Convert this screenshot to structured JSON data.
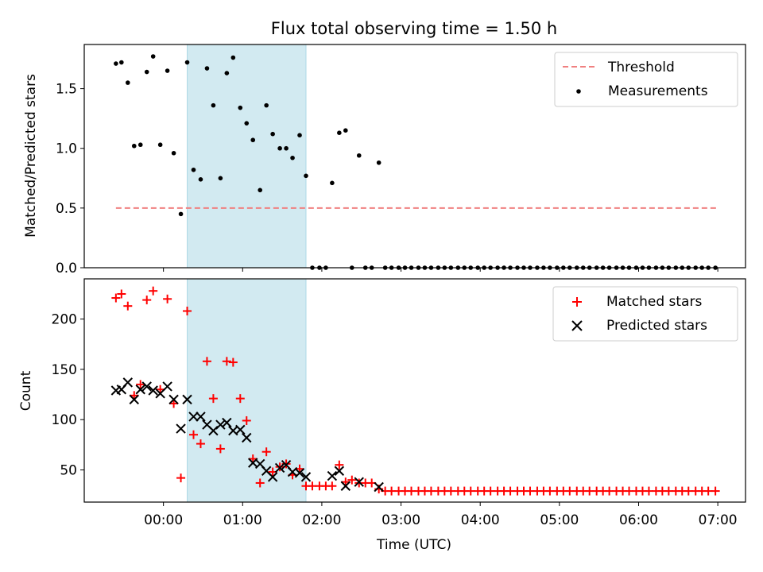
{
  "chart_data": [
    {
      "type": "scatter",
      "title": "Flux total observing time = 1.50 h",
      "ylabel": "Matched/Predicted stars",
      "xlim": [
        -1.0,
        7.35
      ],
      "ylim": [
        0,
        1.87
      ],
      "ytick_labels": [
        "0.0",
        "0.5",
        "1.0",
        "1.5"
      ],
      "ytick_values": [
        0,
        0.5,
        1.0,
        1.5
      ],
      "grid": false,
      "legend": "top-right",
      "shaded_span": {
        "x_start": 0.3,
        "x_end": 1.8,
        "color": "#add8e6"
      },
      "threshold": {
        "name": "Threshold",
        "value": 0.5,
        "x_start": -0.6,
        "x_end": 7.0,
        "color": "#f08080"
      },
      "series": [
        {
          "name": "Measurements",
          "color": "#000000",
          "marker": "dot",
          "points": [
            [
              -0.6,
              1.71
            ],
            [
              -0.53,
              1.72
            ],
            [
              -0.45,
              1.55
            ],
            [
              -0.37,
              1.02
            ],
            [
              -0.29,
              1.03
            ],
            [
              -0.21,
              1.64
            ],
            [
              -0.13,
              1.77
            ],
            [
              -0.04,
              1.03
            ],
            [
              0.05,
              1.65
            ],
            [
              0.13,
              0.96
            ],
            [
              0.22,
              0.45
            ],
            [
              0.3,
              1.72
            ],
            [
              0.38,
              0.82
            ],
            [
              0.47,
              0.74
            ],
            [
              0.55,
              1.67
            ],
            [
              0.63,
              1.36
            ],
            [
              0.72,
              0.75
            ],
            [
              0.8,
              1.63
            ],
            [
              0.88,
              1.76
            ],
            [
              0.97,
              1.34
            ],
            [
              1.05,
              1.21
            ],
            [
              1.13,
              1.07
            ],
            [
              1.22,
              0.65
            ],
            [
              1.3,
              1.36
            ],
            [
              1.38,
              1.12
            ],
            [
              1.47,
              1.0
            ],
            [
              1.55,
              1.0
            ],
            [
              1.63,
              0.92
            ],
            [
              1.72,
              1.11
            ],
            [
              1.8,
              0.77
            ],
            [
              1.88,
              0
            ],
            [
              1.97,
              0
            ],
            [
              2.05,
              0
            ],
            [
              2.13,
              0.71
            ],
            [
              2.22,
              1.13
            ],
            [
              2.3,
              1.15
            ],
            [
              2.38,
              0
            ],
            [
              2.47,
              0.94
            ],
            [
              2.55,
              0
            ],
            [
              2.63,
              0
            ],
            [
              2.72,
              0.88
            ],
            [
              2.8,
              0
            ],
            [
              2.88,
              0
            ],
            [
              2.97,
              0
            ],
            [
              3.05,
              0
            ],
            [
              3.13,
              0
            ],
            [
              3.22,
              0
            ],
            [
              3.3,
              0
            ],
            [
              3.38,
              0
            ],
            [
              3.47,
              0
            ],
            [
              3.55,
              0
            ],
            [
              3.63,
              0
            ],
            [
              3.72,
              0
            ],
            [
              3.8,
              0
            ],
            [
              3.88,
              0
            ],
            [
              3.97,
              0
            ],
            [
              4.05,
              0
            ],
            [
              4.13,
              0
            ],
            [
              4.22,
              0
            ],
            [
              4.3,
              0
            ],
            [
              4.38,
              0
            ],
            [
              4.47,
              0
            ],
            [
              4.55,
              0
            ],
            [
              4.63,
              0
            ],
            [
              4.72,
              0
            ],
            [
              4.8,
              0
            ],
            [
              4.88,
              0
            ],
            [
              4.97,
              0
            ],
            [
              5.05,
              0
            ],
            [
              5.13,
              0
            ],
            [
              5.22,
              0
            ],
            [
              5.3,
              0
            ],
            [
              5.38,
              0
            ],
            [
              5.47,
              0
            ],
            [
              5.55,
              0
            ],
            [
              5.63,
              0
            ],
            [
              5.72,
              0
            ],
            [
              5.8,
              0
            ],
            [
              5.88,
              0
            ],
            [
              5.97,
              0
            ],
            [
              6.05,
              0
            ],
            [
              6.13,
              0
            ],
            [
              6.22,
              0
            ],
            [
              6.3,
              0
            ],
            [
              6.38,
              0
            ],
            [
              6.47,
              0
            ],
            [
              6.55,
              0
            ],
            [
              6.63,
              0
            ],
            [
              6.72,
              0
            ],
            [
              6.8,
              0
            ],
            [
              6.88,
              0
            ],
            [
              6.97,
              0
            ]
          ]
        }
      ]
    },
    {
      "type": "scatter",
      "xlabel": "Time (UTC)",
      "ylabel": "Count",
      "xlim": [
        -1.0,
        7.35
      ],
      "ylim": [
        18,
        240
      ],
      "xtick_labels": [
        "00:00",
        "01:00",
        "02:00",
        "03:00",
        "04:00",
        "05:00",
        "06:00",
        "07:00"
      ],
      "xtick_values": [
        0,
        1,
        2,
        3,
        4,
        5,
        6,
        7
      ],
      "ytick_labels": [
        "50",
        "100",
        "150",
        "200"
      ],
      "ytick_values": [
        50,
        100,
        150,
        200
      ],
      "grid": false,
      "legend": "top-right",
      "shaded_span": {
        "x_start": 0.3,
        "x_end": 1.8,
        "color": "#add8e6"
      },
      "series": [
        {
          "name": "Matched stars",
          "color": "#ff0000",
          "marker": "plus",
          "points": [
            [
              -0.6,
              221
            ],
            [
              -0.53,
              225
            ],
            [
              -0.45,
              213
            ],
            [
              -0.37,
              124
            ],
            [
              -0.29,
              135
            ],
            [
              -0.21,
              219
            ],
            [
              -0.13,
              228
            ],
            [
              -0.04,
              130
            ],
            [
              0.05,
              220
            ],
            [
              0.13,
              116
            ],
            [
              0.22,
              42
            ],
            [
              0.3,
              208
            ],
            [
              0.38,
              85
            ],
            [
              0.47,
              76
            ],
            [
              0.55,
              158
            ],
            [
              0.63,
              121
            ],
            [
              0.72,
              71
            ],
            [
              0.8,
              158
            ],
            [
              0.88,
              157
            ],
            [
              0.97,
              121
            ],
            [
              1.05,
              99
            ],
            [
              1.13,
              61
            ],
            [
              1.22,
              37
            ],
            [
              1.3,
              68
            ],
            [
              1.38,
              48
            ],
            [
              1.47,
              53
            ],
            [
              1.55,
              56
            ],
            [
              1.63,
              45
            ],
            [
              1.72,
              51
            ],
            [
              1.8,
              34
            ],
            [
              1.88,
              34
            ],
            [
              1.97,
              34
            ],
            [
              2.05,
              34
            ],
            [
              2.13,
              34
            ],
            [
              2.22,
              55
            ],
            [
              2.3,
              38
            ],
            [
              2.38,
              40
            ],
            [
              2.47,
              37
            ],
            [
              2.55,
              37
            ],
            [
              2.63,
              37
            ],
            [
              2.72,
              31
            ],
            [
              2.8,
              29
            ],
            [
              2.88,
              29
            ],
            [
              2.97,
              29
            ],
            [
              3.05,
              29
            ],
            [
              3.13,
              29
            ],
            [
              3.22,
              29
            ],
            [
              3.3,
              29
            ],
            [
              3.38,
              29
            ],
            [
              3.47,
              29
            ],
            [
              3.55,
              29
            ],
            [
              3.63,
              29
            ],
            [
              3.72,
              29
            ],
            [
              3.8,
              29
            ],
            [
              3.88,
              29
            ],
            [
              3.97,
              29
            ],
            [
              4.05,
              29
            ],
            [
              4.13,
              29
            ],
            [
              4.22,
              29
            ],
            [
              4.3,
              29
            ],
            [
              4.38,
              29
            ],
            [
              4.47,
              29
            ],
            [
              4.55,
              29
            ],
            [
              4.63,
              29
            ],
            [
              4.72,
              29
            ],
            [
              4.8,
              29
            ],
            [
              4.88,
              29
            ],
            [
              4.97,
              29
            ],
            [
              5.05,
              29
            ],
            [
              5.13,
              29
            ],
            [
              5.22,
              29
            ],
            [
              5.3,
              29
            ],
            [
              5.38,
              29
            ],
            [
              5.47,
              29
            ],
            [
              5.55,
              29
            ],
            [
              5.63,
              29
            ],
            [
              5.72,
              29
            ],
            [
              5.8,
              29
            ],
            [
              5.88,
              29
            ],
            [
              5.97,
              29
            ],
            [
              6.05,
              29
            ],
            [
              6.13,
              29
            ],
            [
              6.22,
              29
            ],
            [
              6.3,
              29
            ],
            [
              6.38,
              29
            ],
            [
              6.47,
              29
            ],
            [
              6.55,
              29
            ],
            [
              6.63,
              29
            ],
            [
              6.72,
              29
            ],
            [
              6.8,
              29
            ],
            [
              6.88,
              29
            ],
            [
              6.97,
              29
            ]
          ]
        },
        {
          "name": "Predicted stars",
          "color": "#000000",
          "marker": "x",
          "points": [
            [
              -0.6,
              129
            ],
            [
              -0.53,
              130
            ],
            [
              -0.45,
              137
            ],
            [
              -0.37,
              120
            ],
            [
              -0.29,
              130
            ],
            [
              -0.21,
              133
            ],
            [
              -0.13,
              129
            ],
            [
              -0.04,
              126
            ],
            [
              0.05,
              133
            ],
            [
              0.13,
              120
            ],
            [
              0.22,
              91
            ],
            [
              0.3,
              120
            ],
            [
              0.38,
              103
            ],
            [
              0.47,
              103
            ],
            [
              0.55,
              95
            ],
            [
              0.63,
              89
            ],
            [
              0.72,
              95
            ],
            [
              0.8,
              97
            ],
            [
              0.88,
              89
            ],
            [
              0.97,
              90
            ],
            [
              1.05,
              82
            ],
            [
              1.13,
              57
            ],
            [
              1.22,
              56
            ],
            [
              1.3,
              49
            ],
            [
              1.38,
              43
            ],
            [
              1.47,
              52
            ],
            [
              1.55,
              55
            ],
            [
              1.63,
              48
            ],
            [
              1.72,
              47
            ],
            [
              1.8,
              43
            ],
            [
              2.13,
              44
            ],
            [
              2.22,
              49
            ],
            [
              2.3,
              34
            ],
            [
              2.47,
              38
            ],
            [
              2.72,
              33
            ]
          ]
        }
      ]
    }
  ]
}
